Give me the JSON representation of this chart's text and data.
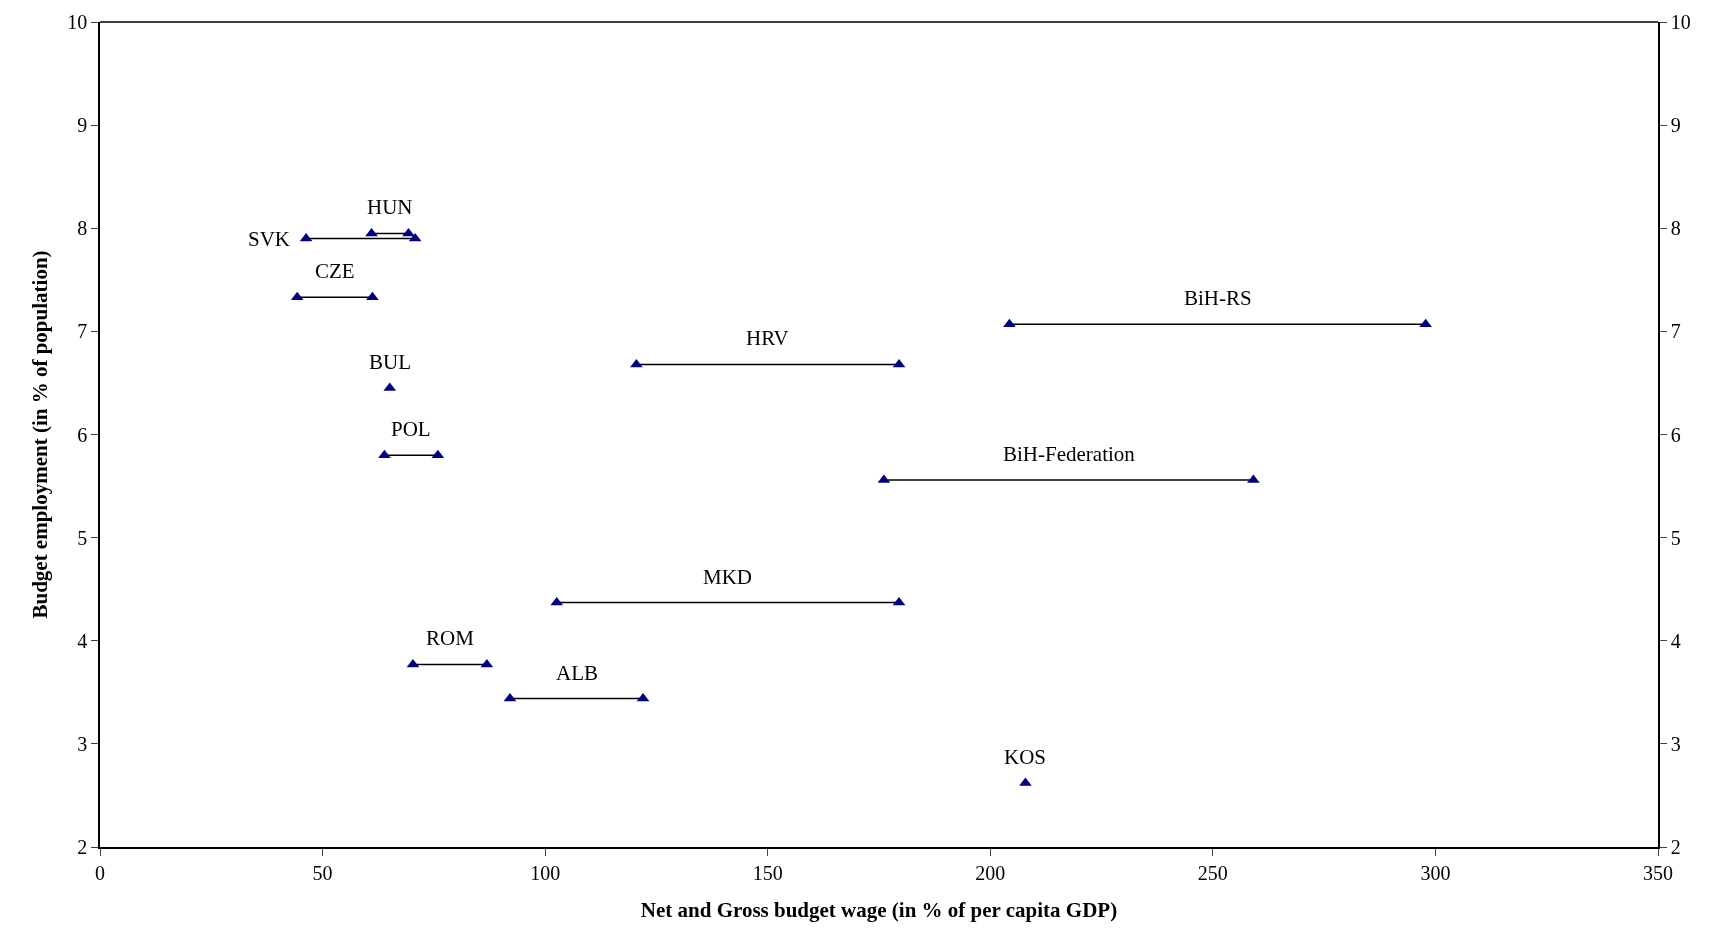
{
  "chart_data": {
    "type": "line",
    "xlabel": "Net and Gross budget wage (in % of per capita GDP)",
    "ylabel": "Budget employment (in % of population)",
    "xlim": [
      0,
      350
    ],
    "xticks": [
      0,
      50,
      100,
      150,
      200,
      250,
      300,
      350
    ],
    "ylim": [
      2,
      10
    ],
    "yticks": [
      2,
      3,
      4,
      5,
      6,
      7,
      8,
      9,
      10
    ],
    "y2lim": [
      2,
      10
    ],
    "y2ticks": [
      2,
      3,
      4,
      5,
      6,
      7,
      8,
      9,
      10
    ],
    "marker": "triangle",
    "line_style": "solid",
    "legend": false,
    "series": [
      {
        "name": "HUN",
        "color": "#000080",
        "x": [
          61.0,
          69.3
        ],
        "values": [
          7.95,
          7.95
        ]
      },
      {
        "name": "SVK",
        "color": "#000080",
        "x": [
          46.3,
          70.8
        ],
        "values": [
          7.9,
          7.9
        ]
      },
      {
        "name": "CZE",
        "color": "#000080",
        "x": [
          44.3,
          61.2
        ],
        "values": [
          7.33,
          7.33
        ]
      },
      {
        "name": "BUL",
        "color": "#000080",
        "x": [
          65.1
        ],
        "values": [
          6.45
        ]
      },
      {
        "name": "POL",
        "color": "#000080",
        "x": [
          63.9,
          75.9
        ],
        "values": [
          5.8,
          5.8
        ]
      },
      {
        "name": "HRV",
        "color": "#000080",
        "x": [
          120.5,
          179.5
        ],
        "values": [
          6.68,
          6.68
        ]
      },
      {
        "name": "BiH-RS",
        "color": "#000080",
        "x": [
          204.3,
          297.8
        ],
        "values": [
          7.07,
          7.07
        ]
      },
      {
        "name": "BiH-Federation",
        "color": "#000080",
        "x": [
          176.1,
          259.1
        ],
        "values": [
          5.56,
          5.56
        ]
      },
      {
        "name": "MKD",
        "color": "#000080",
        "x": [
          102.6,
          179.5
        ],
        "values": [
          4.37,
          4.37
        ]
      },
      {
        "name": "ROM",
        "color": "#000080",
        "x": [
          70.3,
          86.9
        ],
        "values": [
          3.77,
          3.77
        ]
      },
      {
        "name": "ALB",
        "color": "#000080",
        "x": [
          92.1,
          122.0
        ],
        "values": [
          3.44,
          3.44
        ]
      },
      {
        "name": "KOS",
        "color": "#000080",
        "x": [
          207.9
        ],
        "values": [
          2.62
        ]
      }
    ]
  }
}
